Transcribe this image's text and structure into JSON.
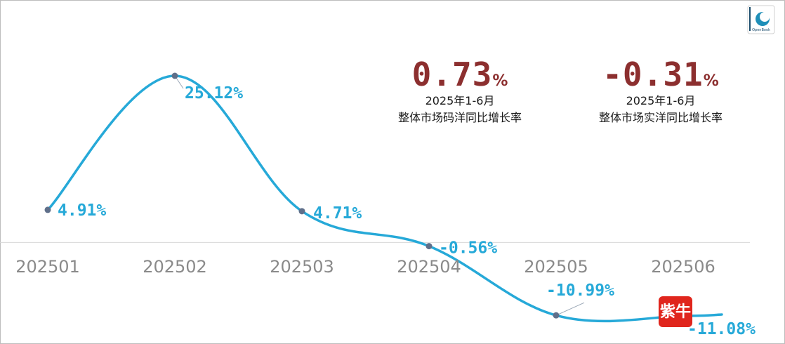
{
  "colors": {
    "line": "#26a9d8",
    "point": "#5f6f8a",
    "axis_label": "#8a8a8a",
    "data_label": "#26a9d8",
    "stat_value": "#8c2f2f",
    "axis_line": "#d8d8d8",
    "badge": "#e0261d"
  },
  "stats": [
    {
      "value": "0.73",
      "unit": "%",
      "line1": "2025年1-6月",
      "line2": "整体市场码洋同比增长率"
    },
    {
      "value": "-0.31",
      "unit": "%",
      "line1": "2025年1-6月",
      "line2": "整体市场实洋同比增长率"
    }
  ],
  "logo": {
    "text": "OpenBook",
    "icon": "openbook-logo"
  },
  "badge": {
    "text": "紫牛",
    "icon": "ziniu-badge"
  },
  "chart_data": {
    "type": "line",
    "smooth": true,
    "categories": [
      "202501",
      "202502",
      "202503",
      "202504",
      "202505",
      "202506"
    ],
    "series": [
      {
        "values": [
          4.91,
          25.12,
          4.71,
          -0.56,
          -10.99,
          -11.08
        ],
        "labels": [
          "4.91%",
          "25.12%",
          "4.71%",
          "-0.56%",
          "-10.99%",
          "-11.08%"
        ]
      }
    ],
    "ylim": [
      -12,
      27
    ],
    "grid": false,
    "legend": "none"
  }
}
